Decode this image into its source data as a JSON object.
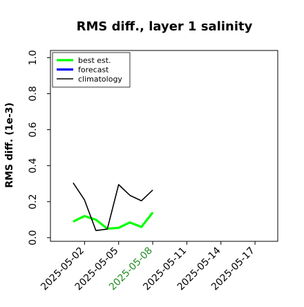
{
  "chart_data": {
    "type": "line",
    "title": "RMS diff., layer 1 salinity",
    "xlabel": "",
    "ylabel": "RMS diff. (1e-3)",
    "ylim": [
      -0.02,
      1.04
    ],
    "xlim": [
      "2025-04-29",
      "2025-05-19"
    ],
    "yticks": [
      "0.0",
      "0.2",
      "0.4",
      "0.6",
      "0.8",
      "1.0"
    ],
    "ytick_values": [
      0.0,
      0.2,
      0.4,
      0.6,
      0.8,
      1.0
    ],
    "xticks": [
      "2025-05-02",
      "2025-05-05",
      "2025-05-08",
      "2025-05-11",
      "2025-05-14",
      "2025-05-17"
    ],
    "highlight_xtick": "2025-05-08",
    "highlight_color": "#228b22",
    "grid": false,
    "legend_position": "top-left",
    "series": [
      {
        "name": "best est.",
        "color": "#00ff00",
        "style": "thick",
        "x": [
          "2025-05-01",
          "2025-05-02",
          "2025-05-03",
          "2025-05-04",
          "2025-05-05",
          "2025-05-06",
          "2025-05-07",
          "2025-05-08"
        ],
        "y": [
          0.09,
          0.12,
          0.1,
          0.05,
          0.055,
          0.085,
          0.06,
          0.14
        ]
      },
      {
        "name": "forecast",
        "color": "#0000ff",
        "style": "thick",
        "x": [],
        "y": []
      },
      {
        "name": "climatology",
        "color": "#000000",
        "style": "thin",
        "x": [
          "2025-05-01",
          "2025-05-02",
          "2025-05-03",
          "2025-05-04",
          "2025-05-05",
          "2025-05-06",
          "2025-05-07",
          "2025-05-08"
        ],
        "y": [
          0.305,
          0.21,
          0.04,
          0.048,
          0.295,
          0.235,
          0.205,
          0.265
        ]
      }
    ]
  }
}
